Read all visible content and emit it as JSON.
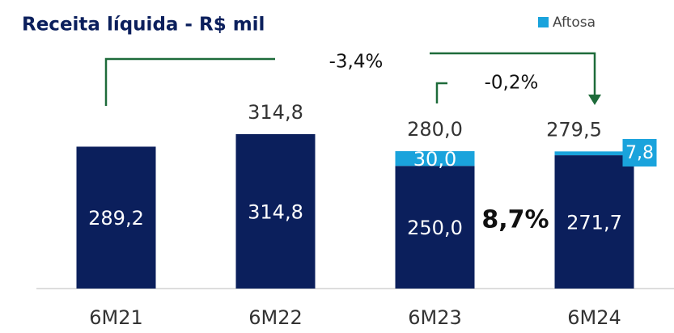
{
  "chart_data": {
    "type": "stacked_bar",
    "title": "Receita líquida - R$ mil",
    "categories": [
      "6M21",
      "6M22",
      "6M23",
      "6M24"
    ],
    "series": [
      {
        "color": "#0b1f5c",
        "values": [
          289.2,
          314.8,
          250.0,
          271.7
        ],
        "value_labels": [
          "289,2",
          "314,8",
          "250,0",
          "271,7"
        ]
      },
      {
        "name": "Aftosa",
        "color": "#1aa3dc",
        "values": [
          null,
          null,
          30.0,
          7.8
        ],
        "value_labels": [
          null,
          null,
          "30,0",
          "7,8"
        ]
      }
    ],
    "totals": [
      null,
      314.8,
      280.0,
      279.5
    ],
    "total_labels": [
      null,
      "314,8",
      "280,0",
      "279,5"
    ],
    "annotations": [
      "-3,4%",
      "-0,2%",
      "8,7%"
    ]
  }
}
